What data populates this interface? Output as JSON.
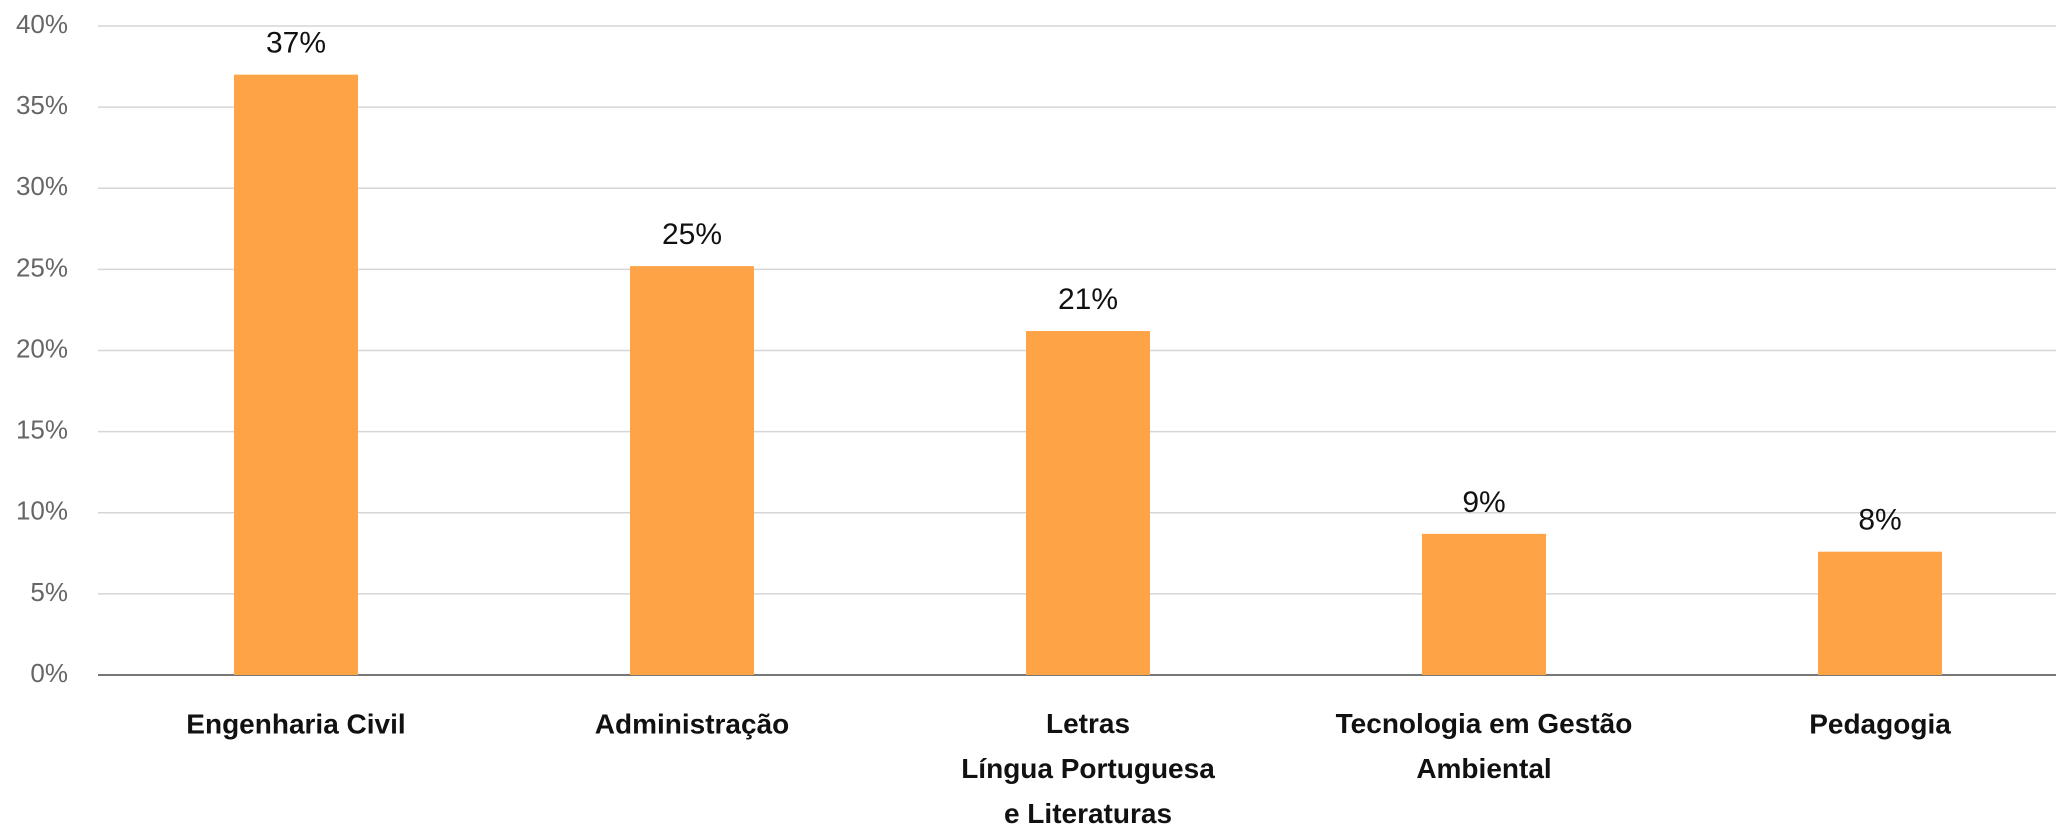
{
  "chart_data": {
    "type": "bar",
    "categories": [
      "Engenharia Civil",
      "Administração",
      "Letras\nLíngua Portuguesa\ne Literaturas",
      "Tecnologia em Gestão\nAmbiental",
      "Pedagogia"
    ],
    "values": [
      37,
      25.2,
      21.2,
      8.7,
      7.6
    ],
    "value_labels": [
      "37%",
      "25%",
      "21%",
      "9%",
      "8%"
    ],
    "color": "#fea446",
    "ylim": [
      0,
      40
    ],
    "yticks": [
      {
        "value": 0,
        "label": "0%"
      },
      {
        "value": 5,
        "label": "5%"
      },
      {
        "value": 10,
        "label": "10%"
      },
      {
        "value": 15,
        "label": "15%"
      },
      {
        "value": 20,
        "label": "20%"
      },
      {
        "value": 25,
        "label": "25%"
      },
      {
        "value": 30,
        "label": "30%"
      },
      {
        "value": 35,
        "label": "35%"
      },
      {
        "value": 40,
        "label": "40%"
      }
    ],
    "grid": true
  }
}
